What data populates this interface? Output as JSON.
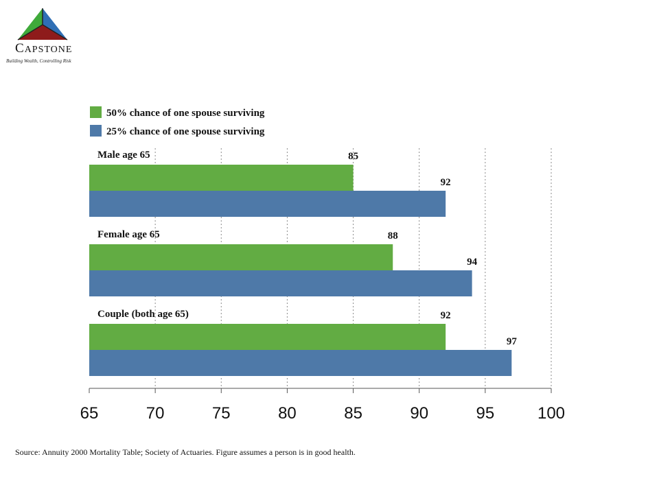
{
  "logo": {
    "name_initial": "C",
    "name_rest": "APSTONE",
    "tagline": "Building Wealth, Controlling Risk"
  },
  "chart_data": {
    "type": "bar",
    "orientation": "horizontal",
    "categories": [
      "Male age 65",
      "Female age 65",
      "Couple (both age 65)"
    ],
    "series": [
      {
        "name": "50% chance of one spouse surviving",
        "color": "#62AC43",
        "values": [
          85,
          88,
          92
        ]
      },
      {
        "name": "25% chance of one spouse surviving",
        "color": "#4E79A8",
        "values": [
          92,
          94,
          97
        ]
      }
    ],
    "xlim": [
      65,
      100
    ],
    "xticks": [
      65,
      70,
      75,
      80,
      85,
      90,
      95,
      100
    ],
    "grid": "vertical-dotted",
    "legend_position": "top-left"
  },
  "source": "Source: Annuity 2000 Mortality Table; Society of Actuaries. Figure assumes a person is in good health."
}
